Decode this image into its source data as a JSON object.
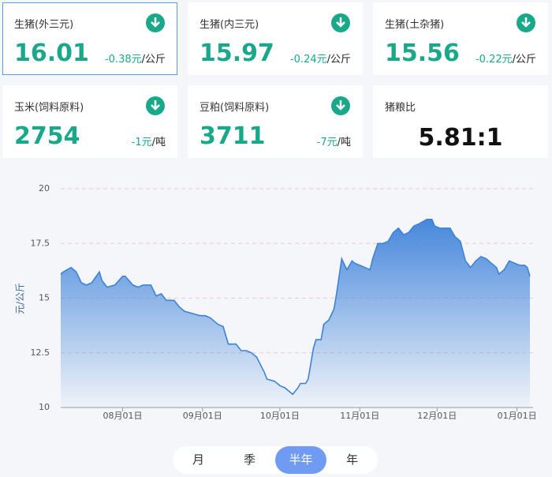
{
  "cards": [
    {
      "title": "生猪(外三元)",
      "price": 16.01,
      "change": "-0.38元",
      "unit": "/公斤"
    },
    {
      "title": "生猪(内三元)",
      "price": 15.97,
      "change": "-0.24元",
      "unit": "/公斤"
    },
    {
      "title": "生猪(土杂猪)",
      "price": 15.56,
      "change": "-0.22元",
      "unit": "/公斤"
    },
    {
      "title": "玉米(饲料原料)",
      "price": 2754,
      "change": "-1元",
      "unit": "/吨"
    },
    {
      "title": "豆粕(饲料原料)",
      "price": 3711,
      "change": "-7元",
      "unit": "/吨"
    },
    {
      "title": "猪粮比",
      "ratio": "5.81:1"
    }
  ],
  "chart_data": {
    "type": "area",
    "ylabel": "元/公斤",
    "color": "#3d82d9",
    "grid": true,
    "x": [
      0,
      1,
      4,
      6,
      8,
      10,
      12,
      15,
      16,
      18,
      21,
      24,
      25,
      28,
      30,
      32,
      35,
      37,
      39,
      41,
      44,
      46,
      48,
      51,
      54,
      56,
      58,
      61,
      63,
      65,
      68,
      70,
      72,
      74,
      76,
      79,
      80,
      83,
      85,
      87,
      89,
      90,
      92,
      93,
      95,
      96,
      98,
      99,
      101,
      102,
      104,
      106,
      107,
      109,
      111,
      113,
      114,
      116,
      118,
      120,
      121,
      123,
      125,
      127,
      129,
      131,
      133,
      135,
      137,
      139,
      142,
      144,
      145,
      147,
      149,
      151,
      153,
      155,
      157,
      159,
      161,
      163,
      165,
      167,
      169,
      170,
      172,
      174,
      176,
      178,
      180,
      181,
      182
    ],
    "values": [
      16.1,
      16.2,
      16.4,
      16.2,
      15.7,
      15.6,
      15.7,
      16.2,
      15.8,
      15.5,
      15.6,
      16.0,
      16.0,
      15.6,
      15.5,
      15.6,
      15.6,
      15.1,
      15.2,
      14.9,
      14.9,
      14.6,
      14.4,
      14.3,
      14.2,
      14.2,
      14.1,
      13.8,
      13.7,
      12.9,
      12.9,
      12.6,
      12.6,
      12.5,
      12.3,
      11.6,
      11.3,
      11.2,
      11.0,
      10.9,
      10.7,
      10.6,
      10.9,
      11.1,
      11.1,
      11.3,
      12.7,
      13.1,
      13.1,
      13.8,
      14.0,
      14.5,
      15.2,
      16.8,
      16.3,
      16.7,
      16.6,
      16.5,
      16.4,
      16.3,
      16.8,
      17.5,
      17.5,
      17.6,
      18.0,
      18.2,
      17.9,
      18.0,
      18.3,
      18.4,
      18.6,
      18.6,
      18.3,
      18.2,
      18.2,
      18.2,
      17.8,
      17.6,
      16.7,
      16.4,
      16.7,
      16.9,
      16.8,
      16.6,
      16.4,
      16.1,
      16.3,
      16.7,
      16.6,
      16.5,
      16.5,
      16.4,
      16.0
    ],
    "xlim": [
      0,
      182
    ],
    "ylim": [
      10,
      20
    ],
    "xticks": [
      {
        "value": 24,
        "label": "08月01日"
      },
      {
        "value": 55,
        "label": "09月01日"
      },
      {
        "value": 85,
        "label": "10月01日"
      },
      {
        "value": 116,
        "label": "11月01日"
      },
      {
        "value": 146,
        "label": "12月01日"
      },
      {
        "value": 177,
        "label": "01月01日"
      }
    ],
    "yticks": [
      10,
      12.5,
      15,
      17.5,
      20
    ]
  },
  "tabs": {
    "items": [
      "月",
      "季",
      "半年",
      "年"
    ],
    "active": 2
  }
}
